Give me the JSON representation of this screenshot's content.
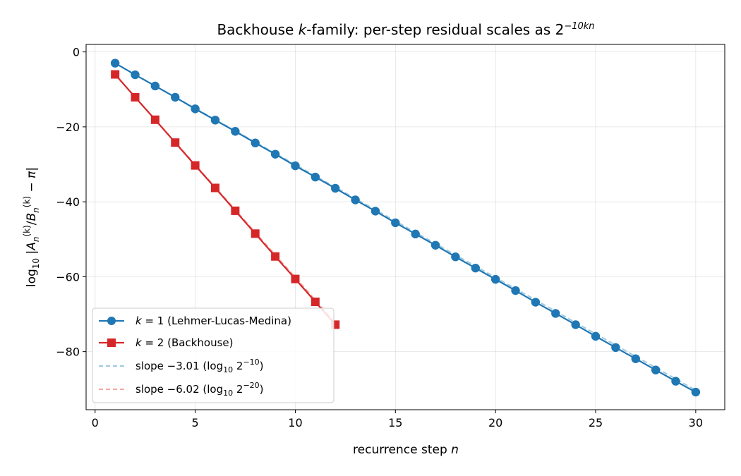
{
  "chart_data": {
    "type": "line",
    "title": "Backhouse k-family: per-step residual scales as 2^(−10kn)",
    "title_parts": {
      "prefix": "Backhouse ",
      "k": "k",
      "middle": "-family: per-step residual scales as 2",
      "exponent": "−10kn"
    },
    "xlabel": "recurrence step n",
    "xlabel_parts": {
      "prefix": "recurrence step ",
      "var": "n"
    },
    "ylabel": "log10 |A_n^(k)/B_n^(k) − π|",
    "ylabel_parts": {
      "log": "log",
      "log_sub": "10",
      "A": "A",
      "sub_n": "n",
      "sup_k": "(k)",
      "B": "B",
      "pi": "π"
    },
    "xlim": [
      -0.45,
      31.45
    ],
    "ylim": [
      -95.5,
      2
    ],
    "xticks": [
      0,
      5,
      10,
      15,
      20,
      25,
      30
    ],
    "yticks": [
      0,
      -20,
      -40,
      -60,
      -80
    ],
    "grid": true,
    "legend_placement": "lower-left",
    "series": [
      {
        "name": "k = 1 (Lehmer-Lucas-Medina)",
        "legend_parts": {
          "k": "k",
          "eq": " = 1",
          "rest": " (Lehmer-Lucas-Medina)"
        },
        "color": "#1f77b4",
        "marker": "circle",
        "x": [
          1,
          2,
          3,
          4,
          5,
          6,
          7,
          8,
          9,
          10,
          11,
          12,
          13,
          14,
          15,
          16,
          17,
          18,
          19,
          20,
          21,
          22,
          23,
          24,
          25,
          26,
          27,
          28,
          29,
          30
        ],
        "y": [
          -3.0,
          -6.1,
          -9.1,
          -12.1,
          -15.2,
          -18.2,
          -21.2,
          -24.3,
          -27.3,
          -30.4,
          -33.4,
          -36.4,
          -39.5,
          -42.5,
          -45.6,
          -48.6,
          -51.6,
          -54.7,
          -57.7,
          -60.7,
          -63.7,
          -66.8,
          -69.8,
          -72.8,
          -75.9,
          -78.9,
          -81.9,
          -84.9,
          -87.9,
          -90.8
        ]
      },
      {
        "name": "k = 2 (Backhouse)",
        "legend_parts": {
          "k": "k",
          "eq": " = 2",
          "rest": " (Backhouse)"
        },
        "color": "#d62728",
        "marker": "square",
        "x": [
          1,
          2,
          3,
          4,
          5,
          6,
          7,
          8,
          9,
          10,
          11,
          12
        ],
        "y": [
          -6.0,
          -12.1,
          -18.1,
          -24.2,
          -30.3,
          -36.3,
          -42.4,
          -48.5,
          -54.6,
          -60.6,
          -66.7,
          -72.8
        ]
      }
    ],
    "reference_lines": [
      {
        "name": "slope −3.01 (log10 2^−10)",
        "legend_parts": {
          "prefix": "slope −3.01 (log",
          "sub": "10",
          "base": " 2",
          "sup": "−10",
          "suffix": ")"
        },
        "color": "#9ecae1",
        "style": "dashed",
        "slope": -3.01,
        "x": [
          1,
          30
        ],
        "y": [
          -3.01,
          -90.3
        ]
      },
      {
        "name": "slope −6.02 (log10 2^−20)",
        "legend_parts": {
          "prefix": "slope −6.02 (log",
          "sub": "10",
          "base": " 2",
          "sup": "−20",
          "suffix": ")"
        },
        "color": "#f4a6a6",
        "style": "dashed",
        "slope": -6.02,
        "x": [
          1,
          12
        ],
        "y": [
          -6.02,
          -72.24
        ]
      }
    ]
  }
}
